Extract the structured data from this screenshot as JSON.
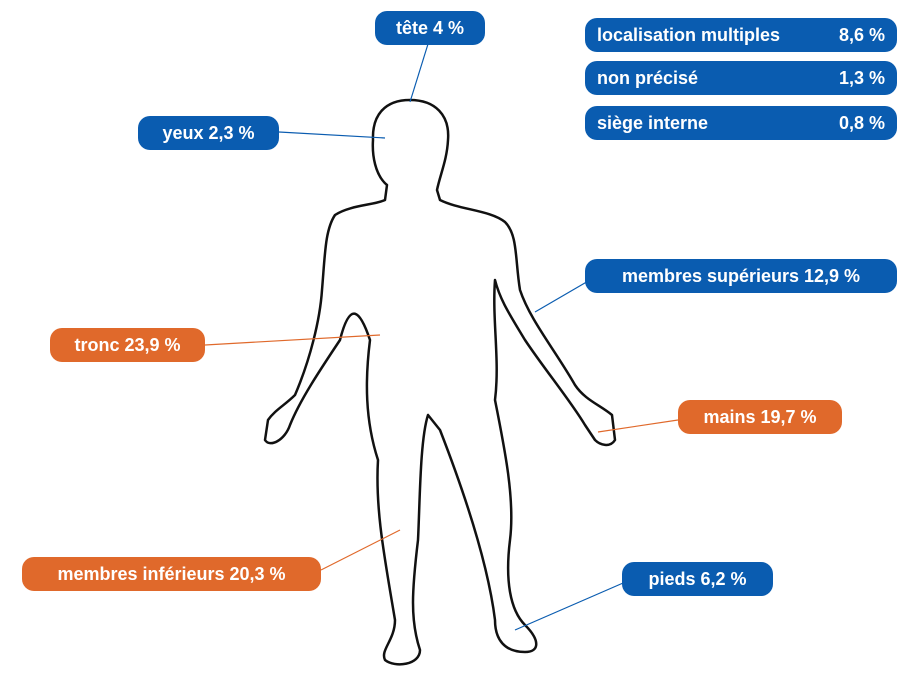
{
  "callouts": [
    {
      "text": "tête 4 %"
    },
    {
      "text": "yeux 2,3 %"
    },
    {
      "text": "membres supérieurs 12,9 %"
    },
    {
      "text": "tronc 23,9 %"
    },
    {
      "text": "mains 19,7 %"
    },
    {
      "text": "membres inférieurs 20,3 %"
    },
    {
      "text": "pieds 6,2 %"
    }
  ],
  "summary": [
    {
      "name": "localisation multiples",
      "value": "8,6 %"
    },
    {
      "name": "non précisé",
      "value": "1,3 %"
    },
    {
      "name": "siège interne",
      "value": "0,8 %"
    }
  ]
}
